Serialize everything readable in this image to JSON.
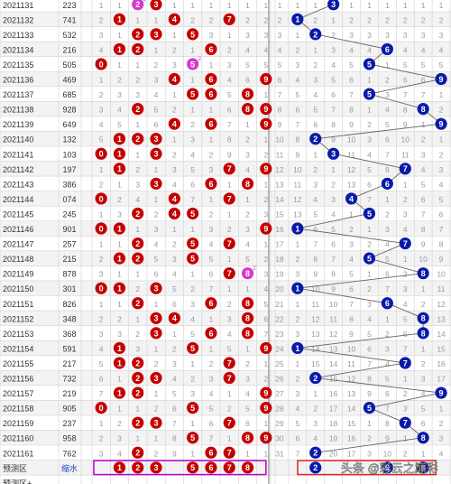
{
  "chart_data": {
    "type": "table",
    "rows": [
      {
        "period": "2021131",
        "number": "223"
      },
      {
        "period": "2021132",
        "number": "741"
      },
      {
        "period": "2021133",
        "number": "532"
      },
      {
        "period": "2021134",
        "number": "216"
      },
      {
        "period": "2021135",
        "number": "505"
      },
      {
        "period": "2021136",
        "number": "469"
      },
      {
        "period": "2021137",
        "number": "685"
      },
      {
        "period": "2021138",
        "number": "928"
      },
      {
        "period": "2021139",
        "number": "649"
      },
      {
        "period": "2021140",
        "number": "132"
      },
      {
        "period": "2021141",
        "number": "103"
      },
      {
        "period": "2021142",
        "number": "197"
      },
      {
        "period": "2021143",
        "number": "386"
      },
      {
        "period": "2021144",
        "number": "074"
      },
      {
        "period": "2021145",
        "number": "245"
      },
      {
        "period": "2021146",
        "number": "901"
      },
      {
        "period": "2021147",
        "number": "257"
      },
      {
        "period": "2021148",
        "number": "215"
      },
      {
        "period": "2021149",
        "number": "878"
      },
      {
        "period": "2021150",
        "number": "301"
      },
      {
        "period": "2021151",
        "number": "826"
      },
      {
        "period": "2021152",
        "number": "348"
      },
      {
        "period": "2021153",
        "number": "368"
      },
      {
        "period": "2021154",
        "number": "591"
      },
      {
        "period": "2021155",
        "number": "217"
      },
      {
        "period": "2021156",
        "number": "732"
      },
      {
        "period": "2021157",
        "number": "219"
      },
      {
        "period": "2021158",
        "number": "905"
      },
      {
        "period": "2021159",
        "number": "237"
      },
      {
        "period": "2021160",
        "number": "958"
      },
      {
        "period": "2021161",
        "number": "762"
      }
    ],
    "last_digit_trend": [
      3,
      1,
      2,
      6,
      5,
      9,
      5,
      8,
      9,
      2,
      3,
      7,
      6,
      4,
      5,
      1,
      7,
      5,
      8,
      1,
      6,
      8,
      8,
      1,
      7,
      2,
      9,
      5,
      7,
      8,
      2
    ],
    "forecast_label": "预测区",
    "forecast_sublabel": "缩水",
    "forecast_left": [
      1,
      2,
      3,
      5,
      6,
      7,
      8
    ],
    "forecast_right": [
      2,
      6,
      8
    ],
    "extra_row_label": "预测区+"
  },
  "watermark": "头条 @彩云之巅彩",
  "colors": {
    "red": "#c40000",
    "blue": "#0a1aa8",
    "magenta": "#d63acb",
    "forecast_box": "#b700c6",
    "forecast_right_box": "#e02020",
    "grid": "#d3d3d3",
    "faint_text": "#9a9a9a",
    "period_text": "#333333"
  }
}
